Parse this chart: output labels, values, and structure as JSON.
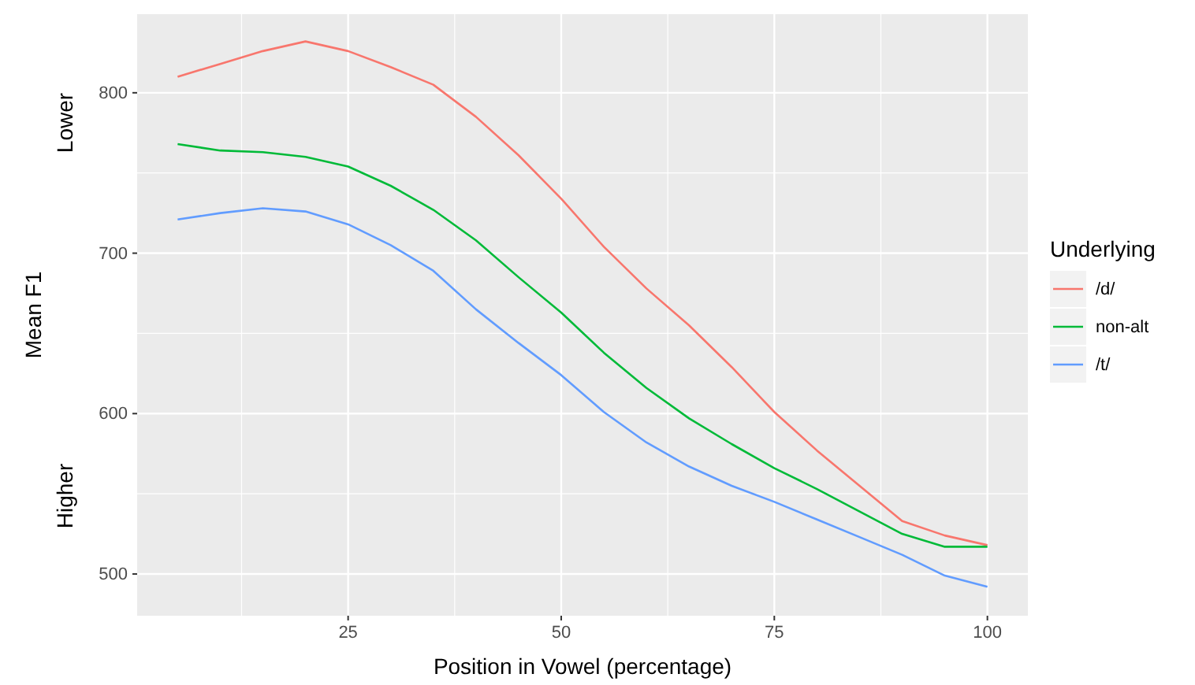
{
  "chart_data": {
    "type": "line",
    "xlabel": "Position in Vowel (percentage)",
    "ylabel": "Mean F1",
    "legend_title": "Underlying",
    "annotations": [
      "Lower",
      "Higher"
    ],
    "x": [
      5,
      10,
      15,
      20,
      25,
      30,
      35,
      40,
      45,
      50,
      55,
      60,
      65,
      70,
      75,
      80,
      85,
      90,
      95,
      100
    ],
    "xlim": [
      0.25,
      104.75
    ],
    "xticks": [
      25,
      50,
      75,
      100
    ],
    "ylim": [
      474,
      849
    ],
    "yticks": [
      500,
      600,
      700,
      800
    ],
    "grid": true,
    "legend": "right",
    "series": [
      {
        "name": "/d/",
        "color": "#f8766d",
        "values": [
          810,
          818,
          826,
          832,
          826,
          816,
          805,
          785,
          761,
          734,
          704,
          678,
          655,
          629,
          601,
          577,
          555,
          533,
          524,
          518
        ]
      },
      {
        "name": "non-alt",
        "color": "#00ba38",
        "values": [
          768,
          764,
          763,
          760,
          754,
          742,
          727,
          708,
          685,
          663,
          638,
          616,
          597,
          581,
          566,
          553,
          539,
          525,
          517,
          517
        ]
      },
      {
        "name": "/t/",
        "color": "#619cff",
        "values": [
          721,
          725,
          728,
          726,
          718,
          705,
          689,
          665,
          644,
          624,
          601,
          582,
          567,
          555,
          545,
          534,
          523,
          512,
          499,
          492
        ]
      }
    ]
  }
}
